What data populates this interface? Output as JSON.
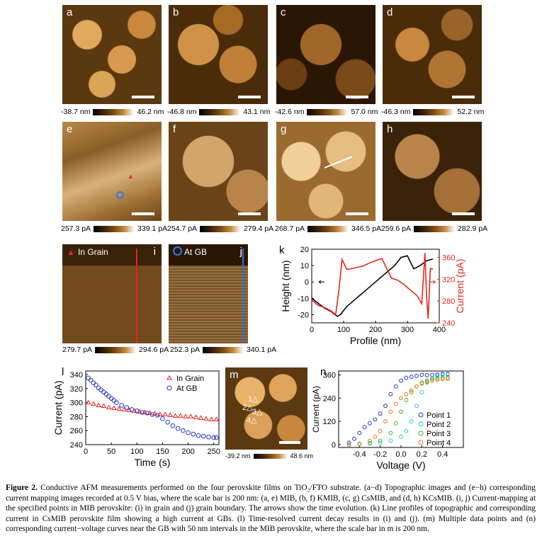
{
  "panels_row1": [
    {
      "label": "a",
      "min": "-38.7 nm",
      "max": "46.2 nm"
    },
    {
      "label": "b",
      "min": "-46.8 nm",
      "max": "43.1 nm"
    },
    {
      "label": "c",
      "min": "-42.6 nm",
      "max": "57.0 nm"
    },
    {
      "label": "d",
      "min": "-46.3 nm",
      "max": "52.2 nm"
    }
  ],
  "panels_row2": [
    {
      "label": "e",
      "min": "257.3 pA",
      "max": "339.1 pA"
    },
    {
      "label": "f",
      "min": "254.7 pA",
      "max": "279.4 pA"
    },
    {
      "label": "g",
      "min": "268.7 pA",
      "max": "346.5 pA"
    },
    {
      "label": "h",
      "min": "259.6 pA",
      "max": "282.9 pA"
    }
  ],
  "panel_i": {
    "label": "i",
    "legend": "In Grain",
    "min": "279.7 pA",
    "max": "294.6 pA"
  },
  "panel_j": {
    "label": "j",
    "legend": "At GB",
    "min": "252.3 pA",
    "max": "340.1 pA"
  },
  "panel_m": {
    "label": "m",
    "min": "-39.2 nm",
    "max": "48.6 nm",
    "points": [
      "1",
      "2",
      "3",
      "4"
    ]
  },
  "colors": {
    "red": "#e8251f",
    "blue": "#2434c8",
    "black": "#000000"
  },
  "chart_data": [
    {
      "panel": "k",
      "type": "line",
      "xlabel": "Profile (nm)",
      "ylabel": "Height (nm)",
      "y2label": "Current (pA)",
      "xlim": [
        0,
        400
      ],
      "ylim": [
        -25,
        20
      ],
      "y2lim": [
        240,
        375
      ],
      "xticks": [
        "0",
        "100",
        "200",
        "300",
        "400"
      ],
      "yticks": [
        "-20",
        "-10",
        "0",
        "10",
        "20"
      ],
      "y2ticks": [
        "240",
        "280",
        "320",
        "360"
      ],
      "series": [
        {
          "axis": "left",
          "color": "#000000",
          "x": [
            0,
            20,
            40,
            60,
            80,
            90,
            110,
            140,
            170,
            200,
            230,
            260,
            280,
            300,
            320,
            340,
            360,
            380
          ],
          "y": [
            -10,
            -13,
            -16,
            -18,
            -21,
            -20,
            -15,
            -10,
            -5,
            0,
            5,
            10,
            15,
            16,
            8,
            10,
            13,
            14
          ]
        },
        {
          "axis": "right",
          "color": "#e8251f",
          "x": [
            0,
            20,
            40,
            60,
            75,
            85,
            95,
            110,
            130,
            160,
            190,
            220,
            250,
            270,
            290,
            310,
            330,
            345,
            355,
            360,
            365,
            372,
            380
          ],
          "y": [
            282,
            272,
            268,
            262,
            255,
            300,
            356,
            338,
            340,
            344,
            352,
            358,
            322,
            318,
            310,
            300,
            290,
            275,
            368,
            290,
            248,
            340,
            338
          ]
        }
      ]
    },
    {
      "panel": "l",
      "type": "scatter",
      "xlabel": "Time (s)",
      "ylabel": "Current (pA)",
      "xlim": [
        0,
        260
      ],
      "ylim": [
        240,
        345
      ],
      "xticks": [
        "0",
        "50",
        "100",
        "150",
        "200",
        "250"
      ],
      "yticks": [
        "240",
        "260",
        "280",
        "300",
        "320",
        "340"
      ],
      "series": [
        {
          "name": "In Grain",
          "color": "#e8251f",
          "marker": "triangle",
          "x": [
            5,
            15,
            25,
            35,
            45,
            55,
            65,
            75,
            85,
            95,
            105,
            115,
            125,
            135,
            145,
            155,
            165,
            175,
            185,
            195,
            205,
            215,
            225,
            235,
            245,
            255
          ],
          "y": [
            300,
            298,
            296,
            295,
            293,
            292,
            291,
            290,
            289,
            288,
            287,
            286,
            285,
            284,
            283,
            283,
            282,
            281,
            281,
            280,
            280,
            279,
            278,
            277,
            276,
            276
          ]
        },
        {
          "name": "At GB",
          "color": "#2434c8",
          "marker": "circle",
          "x": [
            5,
            10,
            15,
            20,
            25,
            30,
            35,
            40,
            45,
            50,
            55,
            60,
            70,
            80,
            90,
            100,
            110,
            120,
            130,
            140,
            150,
            160,
            170,
            180,
            190,
            200,
            210,
            220,
            230,
            240,
            250,
            255
          ],
          "y": [
            335,
            332,
            328,
            325,
            321,
            318,
            315,
            312,
            309,
            306,
            303,
            300,
            296,
            293,
            290,
            288,
            286,
            285,
            283,
            282,
            277,
            272,
            267,
            263,
            260,
            257,
            255,
            253,
            252,
            251,
            250,
            250
          ]
        }
      ]
    },
    {
      "panel": "n",
      "type": "scatter",
      "xlabel": "Voltage (V)",
      "ylabel": "Current (pA)",
      "xlim": [
        -0.6,
        0.6
      ],
      "ylim": [
        -15,
        380
      ],
      "xticks": [
        "-0.4",
        "-0.2",
        "0.0",
        "0.2",
        "0.4"
      ],
      "yticks": [
        "0",
        "120",
        "240",
        "360"
      ],
      "series": [
        {
          "name": "Point 1",
          "color": "#2434c8",
          "x": [
            -0.5,
            -0.45,
            -0.4,
            -0.35,
            -0.3,
            -0.25,
            -0.2,
            -0.15,
            -0.1,
            -0.05,
            0.0,
            0.05,
            0.1,
            0.15,
            0.2,
            0.25,
            0.3,
            0.35,
            0.4,
            0.45
          ],
          "y": [
            10,
            30,
            60,
            90,
            110,
            130,
            160,
            200,
            260,
            300,
            330,
            345,
            350,
            355,
            360,
            358,
            360,
            362,
            365,
            365
          ]
        },
        {
          "name": "Point 2",
          "color": "#27c8e8",
          "x": [
            -0.5,
            -0.4,
            -0.3,
            -0.2,
            -0.1,
            0.0,
            0.05,
            0.1,
            0.15,
            0.2,
            0.25,
            0.3,
            0.35,
            0.4,
            0.45
          ],
          "y": [
            0,
            2,
            5,
            10,
            20,
            40,
            70,
            120,
            200,
            270,
            320,
            345,
            355,
            360,
            362
          ]
        },
        {
          "name": "Point 3",
          "color": "#3fb81e",
          "x": [
            -0.5,
            -0.4,
            -0.3,
            -0.2,
            -0.1,
            -0.05,
            0.0,
            0.05,
            0.1,
            0.15,
            0.2,
            0.25,
            0.3,
            0.35,
            0.4,
            0.45
          ],
          "y": [
            0,
            3,
            8,
            20,
            60,
            110,
            170,
            230,
            270,
            300,
            320,
            330,
            338,
            342,
            345,
            346
          ]
        },
        {
          "name": "Point 4",
          "color": "#e8741c",
          "x": [
            -0.5,
            -0.4,
            -0.3,
            -0.25,
            -0.2,
            -0.15,
            -0.1,
            -0.05,
            0.0,
            0.05,
            0.1,
            0.15,
            0.2,
            0.25,
            0.3,
            0.35,
            0.4,
            0.45
          ],
          "y": [
            0,
            4,
            20,
            40,
            70,
            120,
            170,
            210,
            240,
            260,
            280,
            300,
            315,
            325,
            330,
            335,
            338,
            340
          ]
        }
      ]
    }
  ],
  "caption": {
    "label": "Figure 2.",
    "text": "Conductive AFM measurements performed on the four perovskite films on TiO₂/FTO substrate. (a−d) Topographic images and (e−h) corresponding current mapping images recorded at 0.5 V bias, where the scale bar is 200 nm: (a, e) MIB, (b, f) KMIB, (c, g) CsMIB, and (d, h) KCsMIB. (i, j) Current-mapping at the specified points in MIB perovskite: (i) in grain and (j) grain boundary. The arrows show the time evolution. (k) Line profiles of topographic and corresponding current in CsMIB perovskite film showing a high current at GBs. (l) Time-resolved current decay results in (i) and (j). (m) Multiple data points and (n) corresponding current−voltage curves near the GB with 50 nm intervals in the MIB perovskite, where the scale bar in m is 200 nm."
  }
}
